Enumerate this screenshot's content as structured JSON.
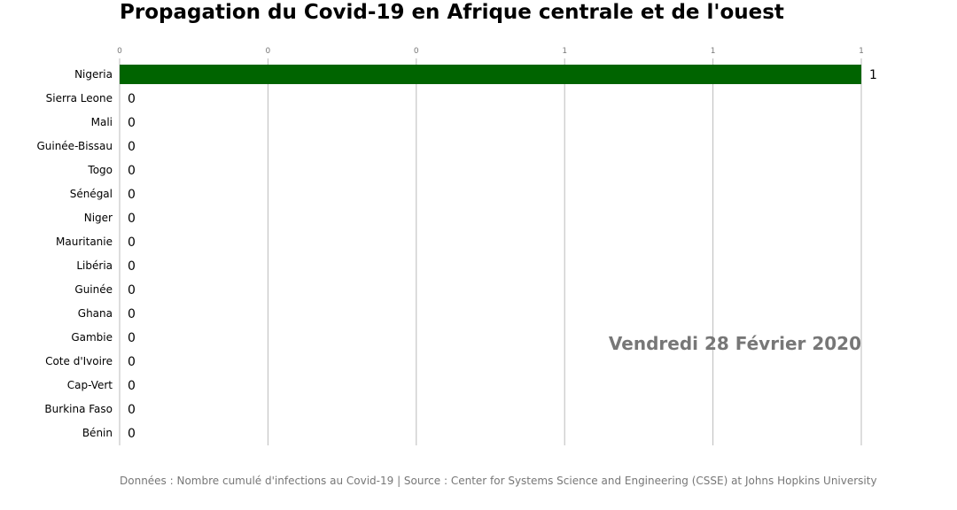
{
  "chart_data": {
    "type": "bar",
    "orientation": "horizontal",
    "title": "Propagation du Covid-19 en Afrique centrale et de l'ouest",
    "categories": [
      "Nigeria",
      "Sierra Leone",
      "Mali",
      "Guinée-Bissau",
      "Togo",
      "Sénégal",
      "Niger",
      "Mauritanie",
      "Libéria",
      "Guinée",
      "Ghana",
      "Gambie",
      "Cote d'Ivoire",
      "Cap-Vert",
      "Burkina Faso",
      "Bénin"
    ],
    "values": [
      1,
      0,
      0,
      0,
      0,
      0,
      0,
      0,
      0,
      0,
      0,
      0,
      0,
      0,
      0,
      0
    ],
    "value_labels": [
      "1",
      "0",
      "0",
      "0",
      "0",
      "0",
      "0",
      "0",
      "0",
      "0",
      "0",
      "0",
      "0",
      "0",
      "0",
      "0"
    ],
    "xlim": [
      0,
      1
    ],
    "x_ticks": [
      0,
      0.2,
      0.4,
      0.6,
      0.8,
      1.0
    ],
    "x_tick_labels": [
      "0",
      "0",
      "0",
      "1",
      "1",
      "1"
    ],
    "x_axis_position": "top",
    "grid": true,
    "bar_color": "#006400",
    "date_annotation": "Vendredi 28 Février 2020",
    "footnote": "Données : Nombre cumulé d'infections au Covid-19 | Source : Center for Systems Science and Engineering (CSSE) at Johns Hopkins University"
  }
}
